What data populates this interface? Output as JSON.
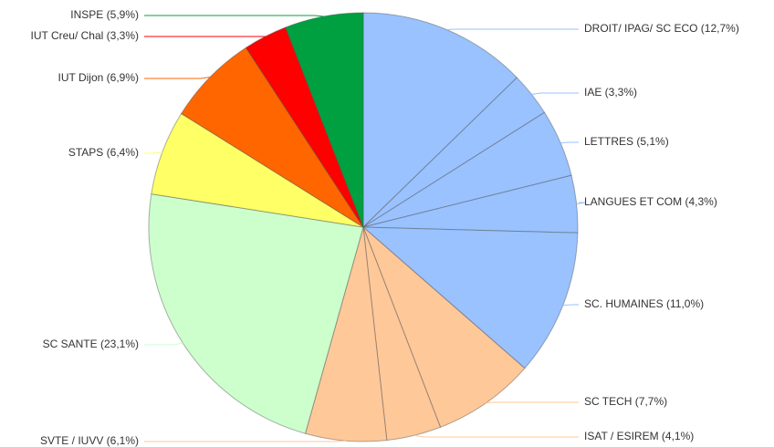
{
  "chart_data": {
    "type": "pie",
    "start_angle_deg": 0,
    "direction": "clockwise",
    "slices": [
      {
        "label": "DROIT/ IPAG/ SC ECO (12,7%)",
        "value": 12.7,
        "color": "#99c2ff"
      },
      {
        "label": "IAE (3,3%)",
        "value": 3.3,
        "color": "#99c2ff"
      },
      {
        "label": "LETTRES (5,1%)",
        "value": 5.1,
        "color": "#99c2ff"
      },
      {
        "label": "LANGUES ET COM (4,3%)",
        "value": 4.3,
        "color": "#99c2ff"
      },
      {
        "label": "SC. HUMAINES (11,0%)",
        "value": 11.0,
        "color": "#99c2ff"
      },
      {
        "label": "SC TECH (7,7%)",
        "value": 7.7,
        "color": "#ffc899"
      },
      {
        "label": "ISAT / ESIREM (4,1%)",
        "value": 4.1,
        "color": "#ffc899"
      },
      {
        "label": "SVTE / IUVV (6,1%)",
        "value": 6.1,
        "color": "#ffc899"
      },
      {
        "label": "SC SANTE (23,1%)",
        "value": 23.1,
        "color": "#ccffcc"
      },
      {
        "label": "STAPS (6,4%)",
        "value": 6.4,
        "color": "#ffff66"
      },
      {
        "label": "IUT Dijon (6,9%)",
        "value": 6.9,
        "color": "#ff6600"
      },
      {
        "label": "IUT Creu/ Chal (3,3%)",
        "value": 3.3,
        "color": "#ff0000"
      },
      {
        "label": "INSPE (5,9%)",
        "value": 5.9,
        "color": "#00a040"
      }
    ]
  }
}
